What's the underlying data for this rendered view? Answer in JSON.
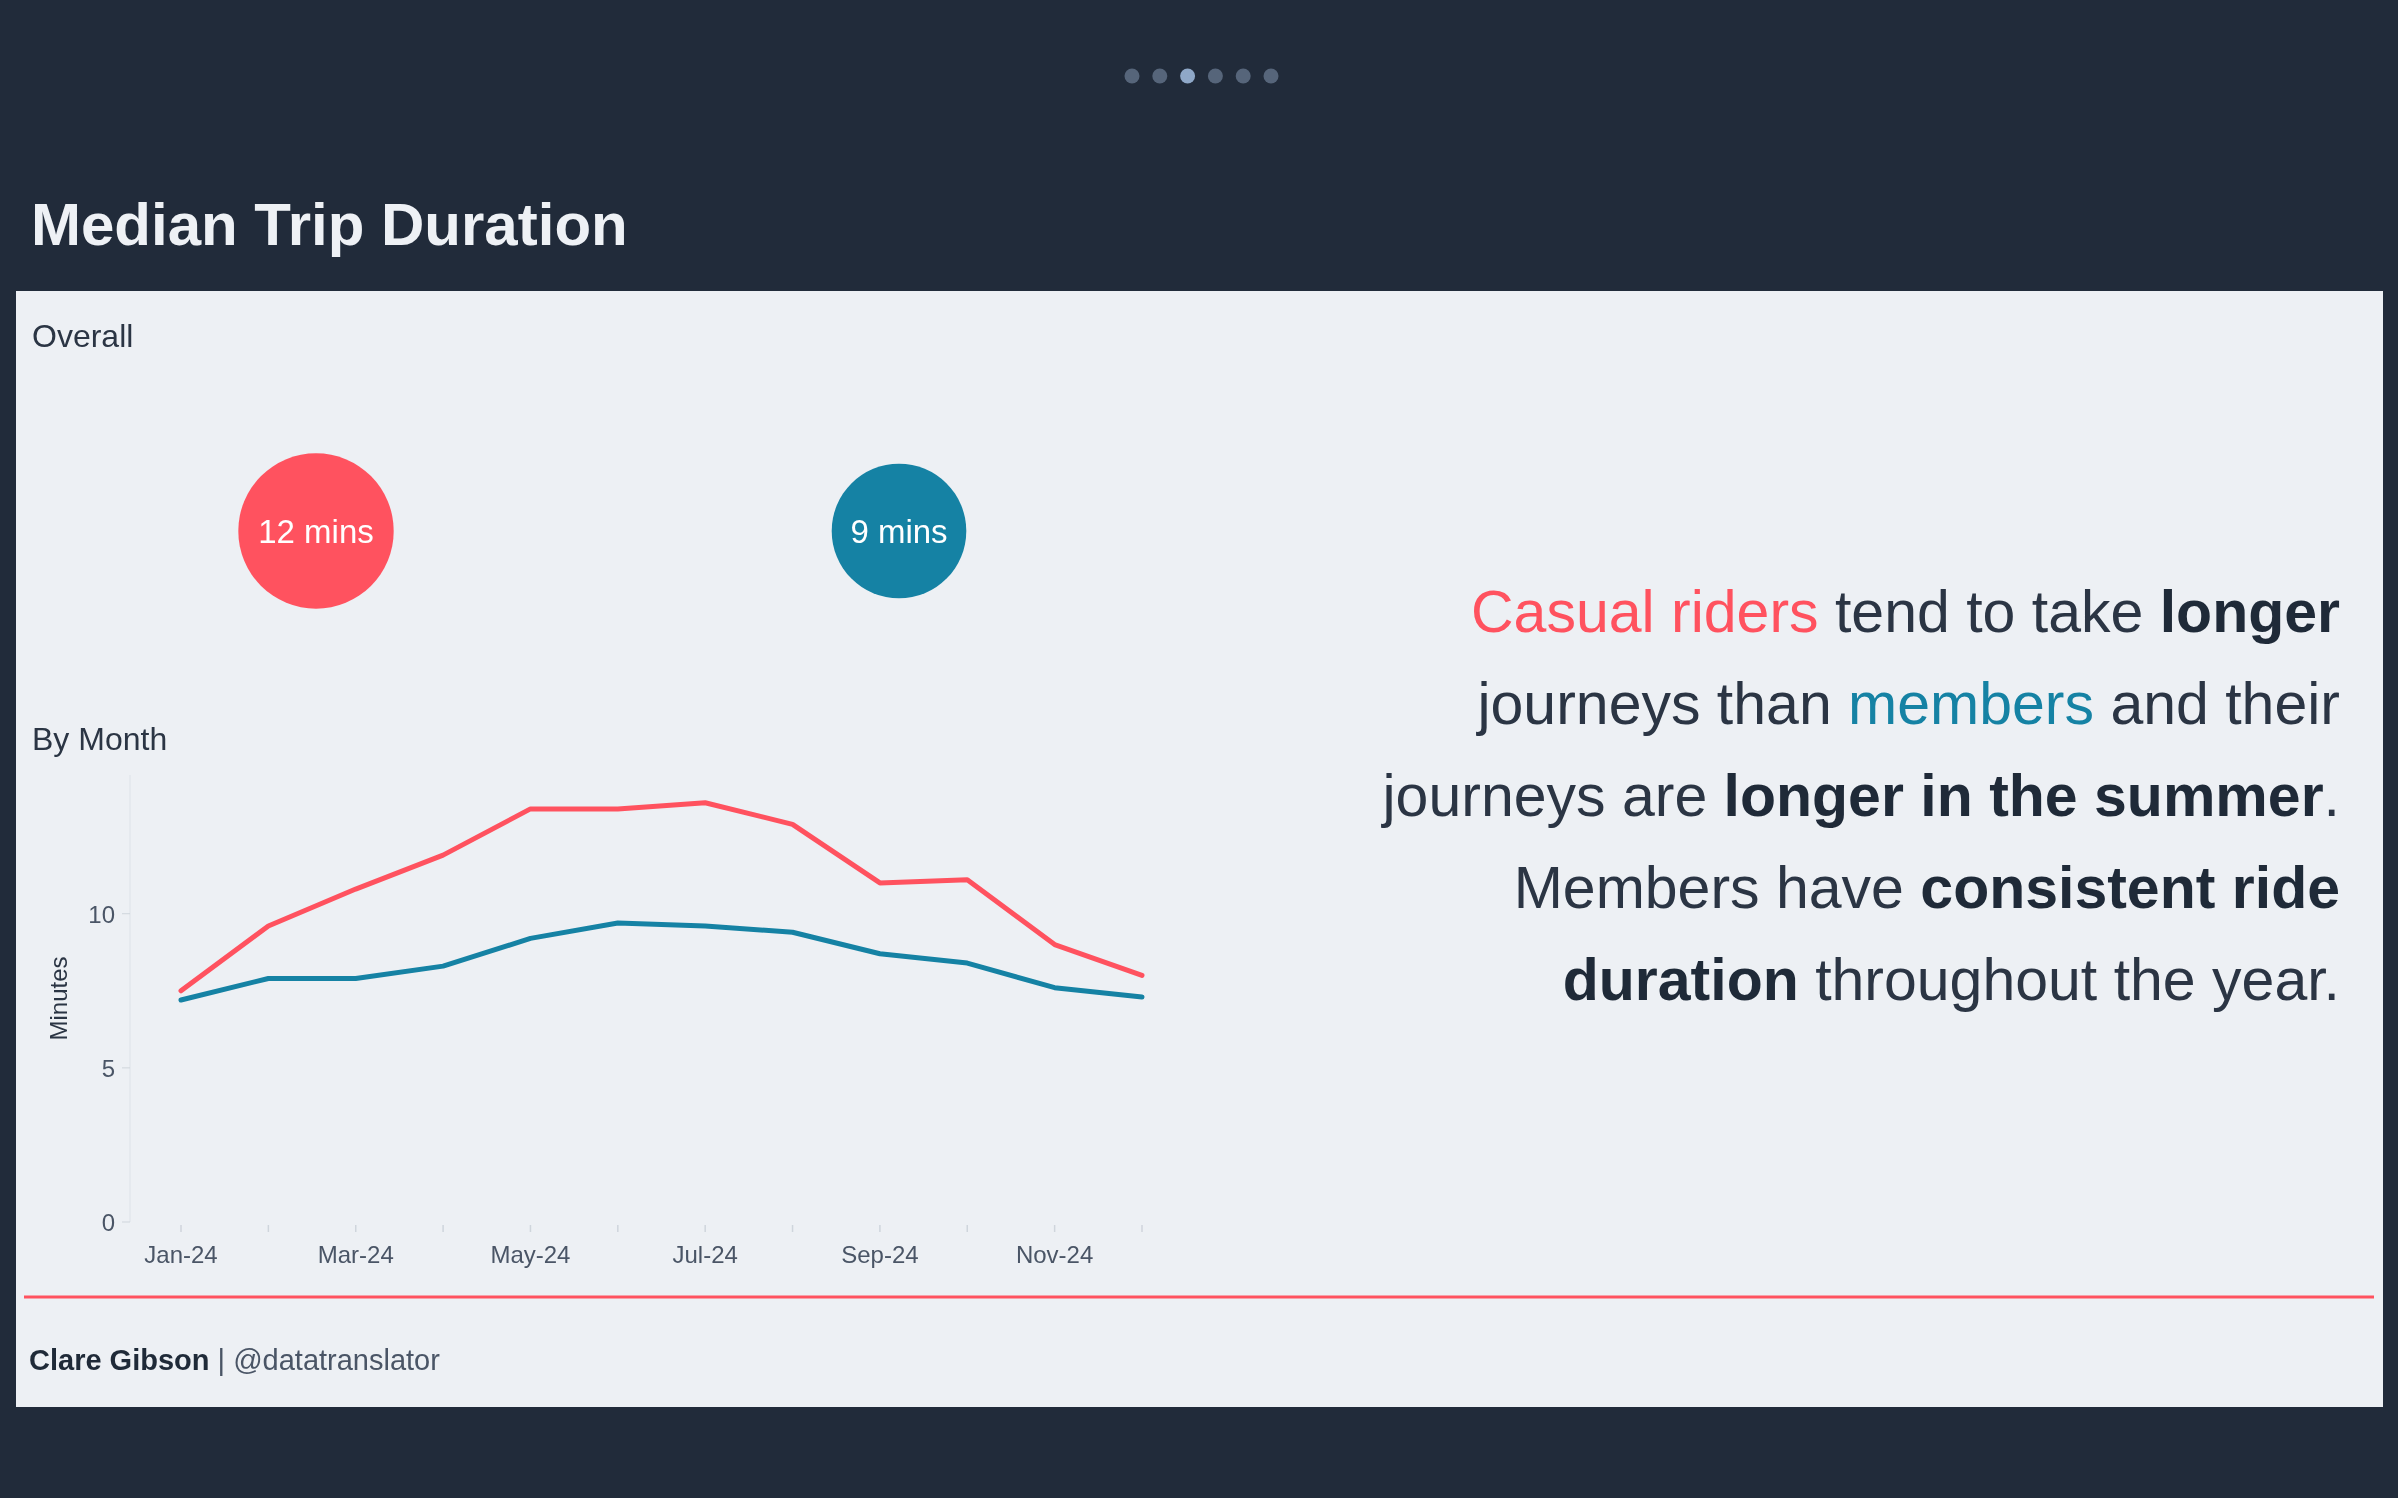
{
  "chart_data": [
    {
      "type": "other",
      "title": "Median Trip Duration",
      "subtitle": "Overall",
      "values": [
        12,
        9
      ],
      "value_labels": [
        "12 mins",
        "9 mins"
      ],
      "colors": [
        "#ff525f",
        "#1582a4"
      ]
    },
    {
      "type": "line",
      "title": "By Month",
      "ylabel": "Minutes",
      "categories": [
        "Jan-24",
        null,
        "Mar-24",
        null,
        "May-24",
        null,
        "Jul-24",
        null,
        "Sep-24",
        null,
        "Nov-24",
        null
      ],
      "series": [
        {
          "color": "#ff525f",
          "values": [
            7.5,
            9.6,
            10.8,
            11.9,
            13.4,
            13.4,
            13.6,
            12.9,
            11.0,
            11.1,
            9.0,
            8.0
          ]
        },
        {
          "color": "#1582a4",
          "values": [
            7.2,
            7.9,
            7.9,
            8.3,
            9.2,
            9.7,
            9.6,
            9.4,
            8.7,
            8.4,
            7.6,
            7.3
          ]
        }
      ],
      "ylim": [
        0,
        14.5
      ],
      "yticks": [
        0,
        5,
        10
      ]
    },
    {
      "type": "other",
      "annotations": [
        "Casual riders tend to take longer",
        "journeys than members and their",
        "journeys are longer in the summer.",
        "Members have consistent ride",
        "duration throughout the year.",
        "Clare Gibson | @datatranslator"
      ]
    }
  ]
}
